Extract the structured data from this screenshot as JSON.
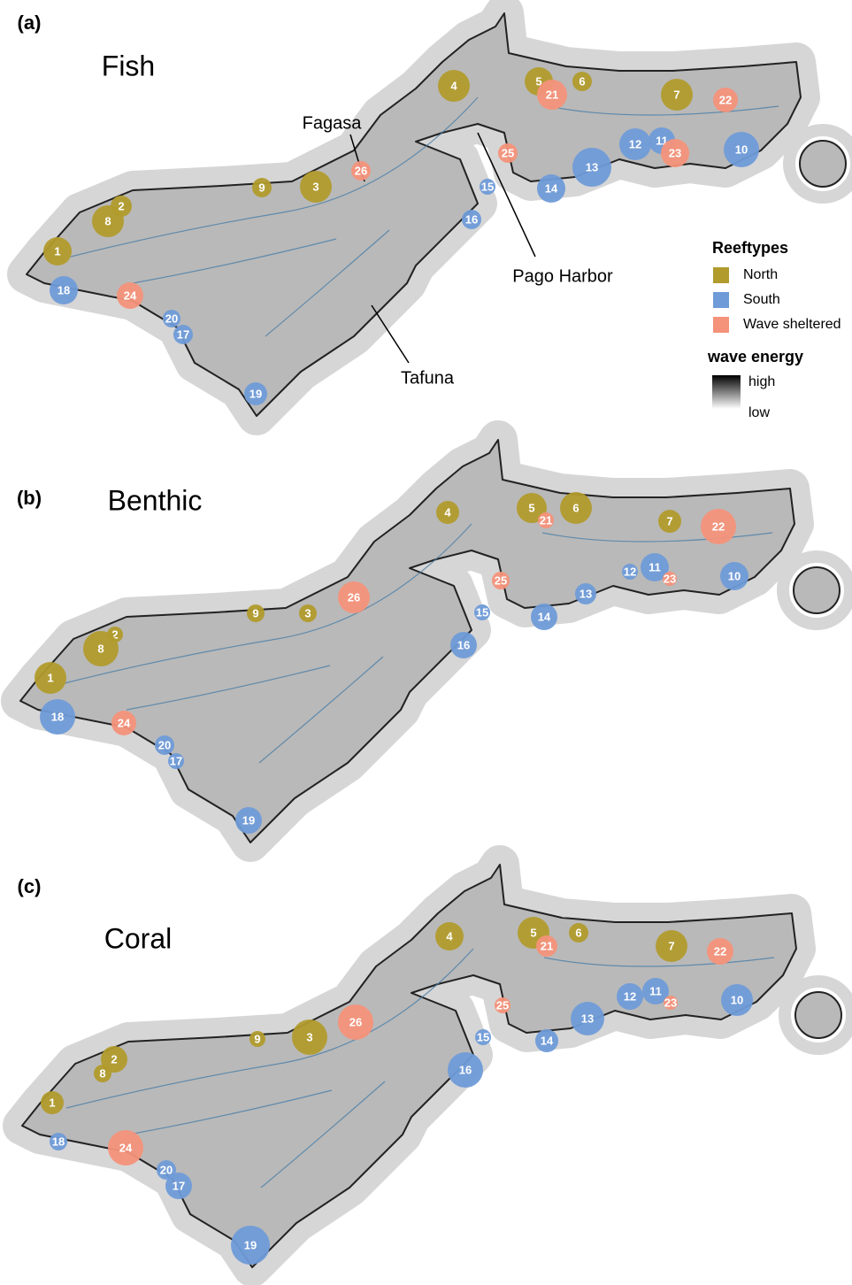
{
  "panels": [
    {
      "label": "(a)",
      "title": "Fish",
      "sites": [
        {
          "label": "1",
          "reeftype": "North"
        },
        {
          "label": "2",
          "reeftype": "North"
        },
        {
          "label": "3",
          "reeftype": "North"
        },
        {
          "label": "4",
          "reeftype": "North"
        },
        {
          "label": "5",
          "reeftype": "North"
        },
        {
          "label": "6",
          "reeftype": "North"
        },
        {
          "label": "7",
          "reeftype": "North"
        },
        {
          "label": "8",
          "reeftype": "North"
        },
        {
          "label": "9",
          "reeftype": "North"
        },
        {
          "label": "10",
          "reeftype": "South"
        },
        {
          "label": "11",
          "reeftype": "South"
        },
        {
          "label": "12",
          "reeftype": "South"
        },
        {
          "label": "13",
          "reeftype": "South"
        },
        {
          "label": "14",
          "reeftype": "South"
        },
        {
          "label": "15",
          "reeftype": "South"
        },
        {
          "label": "16",
          "reeftype": "South"
        },
        {
          "label": "17",
          "reeftype": "South"
        },
        {
          "label": "18",
          "reeftype": "South"
        },
        {
          "label": "19",
          "reeftype": "South"
        },
        {
          "label": "20",
          "reeftype": "South"
        },
        {
          "label": "21",
          "reeftype": "Wave sheltered"
        },
        {
          "label": "22",
          "reeftype": "Wave sheltered"
        },
        {
          "label": "23",
          "reeftype": "Wave sheltered"
        },
        {
          "label": "24",
          "reeftype": "Wave sheltered"
        },
        {
          "label": "25",
          "reeftype": "Wave sheltered"
        },
        {
          "label": "26",
          "reeftype": "Wave sheltered"
        }
      ]
    },
    {
      "label": "(b)",
      "title": "Benthic",
      "sites": [
        {
          "label": "1",
          "reeftype": "North"
        },
        {
          "label": "2",
          "reeftype": "North"
        },
        {
          "label": "3",
          "reeftype": "North"
        },
        {
          "label": "4",
          "reeftype": "North"
        },
        {
          "label": "5",
          "reeftype": "North"
        },
        {
          "label": "6",
          "reeftype": "North"
        },
        {
          "label": "7",
          "reeftype": "North"
        },
        {
          "label": "8",
          "reeftype": "North"
        },
        {
          "label": "9",
          "reeftype": "North"
        },
        {
          "label": "10",
          "reeftype": "South"
        },
        {
          "label": "11",
          "reeftype": "South"
        },
        {
          "label": "12",
          "reeftype": "South"
        },
        {
          "label": "13",
          "reeftype": "South"
        },
        {
          "label": "14",
          "reeftype": "South"
        },
        {
          "label": "15",
          "reeftype": "South"
        },
        {
          "label": "16",
          "reeftype": "South"
        },
        {
          "label": "17",
          "reeftype": "South"
        },
        {
          "label": "18",
          "reeftype": "South"
        },
        {
          "label": "19",
          "reeftype": "South"
        },
        {
          "label": "20",
          "reeftype": "South"
        },
        {
          "label": "21",
          "reeftype": "Wave sheltered"
        },
        {
          "label": "22",
          "reeftype": "Wave sheltered"
        },
        {
          "label": "23",
          "reeftype": "Wave sheltered"
        },
        {
          "label": "24",
          "reeftype": "Wave sheltered"
        },
        {
          "label": "25",
          "reeftype": "Wave sheltered"
        },
        {
          "label": "26",
          "reeftype": "Wave sheltered"
        }
      ]
    },
    {
      "label": "(c)",
      "title": "Coral",
      "sites": [
        {
          "label": "1",
          "reeftype": "North"
        },
        {
          "label": "2",
          "reeftype": "North"
        },
        {
          "label": "3",
          "reeftype": "North"
        },
        {
          "label": "4",
          "reeftype": "North"
        },
        {
          "label": "5",
          "reeftype": "North"
        },
        {
          "label": "6",
          "reeftype": "North"
        },
        {
          "label": "7",
          "reeftype": "North"
        },
        {
          "label": "8",
          "reeftype": "North"
        },
        {
          "label": "9",
          "reeftype": "North"
        },
        {
          "label": "10",
          "reeftype": "South"
        },
        {
          "label": "11",
          "reeftype": "South"
        },
        {
          "label": "12",
          "reeftype": "South"
        },
        {
          "label": "13",
          "reeftype": "South"
        },
        {
          "label": "14",
          "reeftype": "South"
        },
        {
          "label": "15",
          "reeftype": "South"
        },
        {
          "label": "16",
          "reeftype": "South"
        },
        {
          "label": "17",
          "reeftype": "South"
        },
        {
          "label": "18",
          "reeftype": "South"
        },
        {
          "label": "19",
          "reeftype": "South"
        },
        {
          "label": "20",
          "reeftype": "South"
        },
        {
          "label": "21",
          "reeftype": "Wave sheltered"
        },
        {
          "label": "22",
          "reeftype": "Wave sheltered"
        },
        {
          "label": "23",
          "reeftype": "Wave sheltered"
        },
        {
          "label": "24",
          "reeftype": "Wave sheltered"
        },
        {
          "label": "25",
          "reeftype": "Wave sheltered"
        },
        {
          "label": "26",
          "reeftype": "Wave sheltered"
        }
      ]
    }
  ],
  "annotations": [
    "Fagasa",
    "Pago Harbor",
    "Tafuna"
  ],
  "legend": {
    "title": "Reeftypes",
    "items": [
      {
        "label": "North",
        "color": "#b19b2d"
      },
      {
        "label": "South",
        "color": "#6f9bd8"
      },
      {
        "label": "Wave sheltered",
        "color": "#f4927a"
      }
    ]
  },
  "wave_legend": {
    "title": "wave energy",
    "high": "high",
    "low": "low"
  }
}
